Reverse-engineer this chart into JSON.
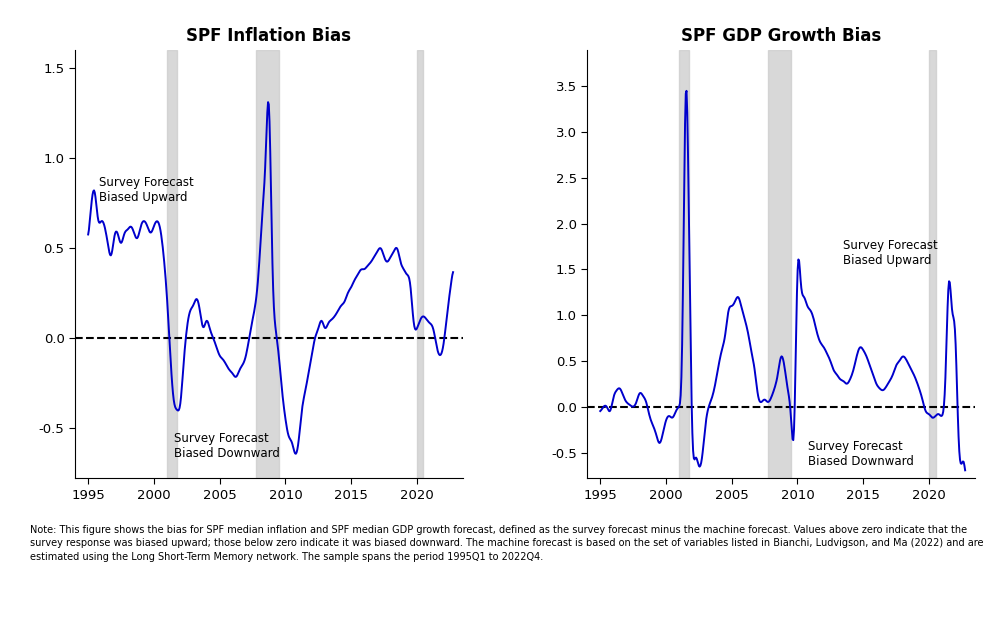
{
  "title1": "SPF Inflation Bias",
  "title2": "SPF GDP Growth Bias",
  "line_color": "#0000CC",
  "shade_color": "#CCCCCC",
  "dashed_color": "#000000",
  "recession1_start": 2001.0,
  "recession1_end": 2001.75,
  "recession2_start": 2007.75,
  "recession2_end": 2009.5,
  "recession3_start": 2020.0,
  "recession3_end": 2020.5,
  "ylim1": [
    -0.78,
    1.6
  ],
  "ylim2": [
    -0.78,
    3.9
  ],
  "yticks1": [
    -0.5,
    0.0,
    0.5,
    1.0,
    1.5
  ],
  "yticks2": [
    -0.5,
    0.0,
    0.5,
    1.0,
    1.5,
    2.0,
    2.5,
    3.0,
    3.5
  ],
  "xticks": [
    1995,
    2000,
    2005,
    2010,
    2015,
    2020
  ],
  "xlim": [
    1994.0,
    2023.5
  ],
  "note": "Note: This figure shows the bias for SPF median inflation and SPF median GDP growth forecast, defined as the survey forecast minus the machine forecast. Values above zero indicate that the survey response was biased upward; those below zero indicate it was biased downward. The machine forecast is based on the set of variables listed in Bianchi, Ludvigson, and Ma (2022) and are estimated using the Long Short-Term Memory network. The sample spans the period 1995Q1 to 2022Q4.",
  "infl_t": [
    1995.0,
    1995.25,
    1995.5,
    1995.75,
    1996.0,
    1996.25,
    1996.5,
    1996.75,
    1997.0,
    1997.25,
    1997.5,
    1997.75,
    1998.0,
    1998.25,
    1998.5,
    1998.75,
    1999.0,
    1999.25,
    1999.5,
    1999.75,
    2000.0,
    2000.25,
    2000.5,
    2000.75,
    2001.0,
    2001.25,
    2001.5,
    2001.75,
    2002.0,
    2002.25,
    2002.5,
    2002.75,
    2003.0,
    2003.25,
    2003.5,
    2003.75,
    2004.0,
    2004.25,
    2004.5,
    2004.75,
    2005.0,
    2005.25,
    2005.5,
    2005.75,
    2006.0,
    2006.25,
    2006.5,
    2006.75,
    2007.0,
    2007.25,
    2007.5,
    2007.75,
    2008.0,
    2008.25,
    2008.5,
    2008.75,
    2009.0,
    2009.25,
    2009.5,
    2009.75,
    2010.0,
    2010.25,
    2010.5,
    2010.75,
    2011.0,
    2011.25,
    2011.5,
    2011.75,
    2012.0,
    2012.25,
    2012.5,
    2012.75,
    2013.0,
    2013.25,
    2013.5,
    2013.75,
    2014.0,
    2014.25,
    2014.5,
    2014.75,
    2015.0,
    2015.25,
    2015.5,
    2015.75,
    2016.0,
    2016.25,
    2016.5,
    2016.75,
    2017.0,
    2017.25,
    2017.5,
    2017.75,
    2018.0,
    2018.25,
    2018.5,
    2018.75,
    2019.0,
    2019.25,
    2019.5,
    2019.75,
    2020.0,
    2020.25,
    2020.5,
    2020.75,
    2021.0,
    2021.25,
    2021.5,
    2021.75,
    2022.0,
    2022.25,
    2022.5,
    2022.75
  ],
  "infl_y": [
    0.55,
    0.75,
    0.82,
    0.65,
    0.65,
    0.62,
    0.52,
    0.45,
    0.57,
    0.58,
    0.52,
    0.58,
    0.6,
    0.62,
    0.58,
    0.55,
    0.62,
    0.65,
    0.62,
    0.58,
    0.62,
    0.65,
    0.6,
    0.45,
    0.22,
    -0.1,
    -0.35,
    -0.4,
    -0.38,
    -0.15,
    0.05,
    0.15,
    0.18,
    0.22,
    0.15,
    0.05,
    0.1,
    0.05,
    0.0,
    -0.05,
    -0.1,
    -0.12,
    -0.15,
    -0.18,
    -0.2,
    -0.22,
    -0.18,
    -0.15,
    -0.1,
    0.0,
    0.1,
    0.2,
    0.4,
    0.7,
    1.0,
    1.35,
    0.42,
    0.05,
    -0.1,
    -0.3,
    -0.45,
    -0.55,
    -0.58,
    -0.65,
    -0.58,
    -0.4,
    -0.3,
    -0.2,
    -0.1,
    0.0,
    0.05,
    0.1,
    0.05,
    0.08,
    0.1,
    0.12,
    0.15,
    0.18,
    0.2,
    0.25,
    0.28,
    0.32,
    0.35,
    0.38,
    0.38,
    0.4,
    0.42,
    0.45,
    0.48,
    0.5,
    0.45,
    0.42,
    0.45,
    0.48,
    0.5,
    0.42,
    0.38,
    0.35,
    0.3,
    0.08,
    0.05,
    0.1,
    0.12,
    0.1,
    0.08,
    0.05,
    -0.05,
    -0.1,
    -0.05,
    0.1,
    0.25,
    0.38
  ],
  "gdp_t": [
    1995.0,
    1995.25,
    1995.5,
    1995.75,
    1996.0,
    1996.25,
    1996.5,
    1996.75,
    1997.0,
    1997.25,
    1997.5,
    1997.75,
    1998.0,
    1998.25,
    1998.5,
    1998.75,
    1999.0,
    1999.25,
    1999.5,
    1999.75,
    2000.0,
    2000.25,
    2000.5,
    2000.75,
    2001.0,
    2001.25,
    2001.5,
    2001.75,
    2002.0,
    2002.25,
    2002.5,
    2002.75,
    2003.0,
    2003.25,
    2003.5,
    2003.75,
    2004.0,
    2004.25,
    2004.5,
    2004.75,
    2005.0,
    2005.25,
    2005.5,
    2005.75,
    2006.0,
    2006.25,
    2006.5,
    2006.75,
    2007.0,
    2007.25,
    2007.5,
    2007.75,
    2008.0,
    2008.25,
    2008.5,
    2008.75,
    2009.0,
    2009.25,
    2009.5,
    2009.75,
    2010.0,
    2010.25,
    2010.5,
    2010.75,
    2011.0,
    2011.25,
    2011.5,
    2011.75,
    2012.0,
    2012.25,
    2012.5,
    2012.75,
    2013.0,
    2013.25,
    2013.5,
    2013.75,
    2014.0,
    2014.25,
    2014.5,
    2014.75,
    2015.0,
    2015.25,
    2015.5,
    2015.75,
    2016.0,
    2016.25,
    2016.5,
    2016.75,
    2017.0,
    2017.25,
    2017.5,
    2017.75,
    2018.0,
    2018.25,
    2018.5,
    2018.75,
    2019.0,
    2019.25,
    2019.5,
    2019.75,
    2020.0,
    2020.25,
    2020.5,
    2020.75,
    2021.0,
    2021.25,
    2021.5,
    2021.75,
    2022.0,
    2022.25,
    2022.5,
    2022.75
  ],
  "gdp_y": [
    -0.05,
    0.0,
    0.0,
    -0.05,
    0.1,
    0.18,
    0.2,
    0.12,
    0.05,
    0.02,
    0.0,
    0.05,
    0.15,
    0.12,
    0.05,
    -0.1,
    -0.2,
    -0.3,
    -0.4,
    -0.3,
    -0.15,
    -0.1,
    -0.12,
    -0.05,
    0.0,
    0.8,
    3.5,
    2.0,
    -0.3,
    -0.55,
    -0.65,
    -0.55,
    -0.2,
    0.0,
    0.1,
    0.25,
    0.45,
    0.62,
    0.78,
    1.05,
    1.1,
    1.15,
    1.2,
    1.08,
    0.95,
    0.8,
    0.6,
    0.4,
    0.12,
    0.05,
    0.08,
    0.05,
    0.1,
    0.2,
    0.35,
    0.55,
    0.45,
    0.2,
    -0.1,
    -0.25,
    1.5,
    1.35,
    1.2,
    1.1,
    1.05,
    0.95,
    0.8,
    0.7,
    0.65,
    0.58,
    0.5,
    0.4,
    0.35,
    0.3,
    0.28,
    0.25,
    0.3,
    0.4,
    0.55,
    0.65,
    0.62,
    0.55,
    0.45,
    0.35,
    0.25,
    0.2,
    0.18,
    0.22,
    0.28,
    0.35,
    0.45,
    0.5,
    0.55,
    0.52,
    0.45,
    0.38,
    0.3,
    0.2,
    0.08,
    -0.05,
    -0.08,
    -0.12,
    -0.1,
    -0.08,
    -0.1,
    0.3,
    1.38,
    1.05,
    0.8,
    -0.35,
    -0.62,
    -0.72
  ]
}
